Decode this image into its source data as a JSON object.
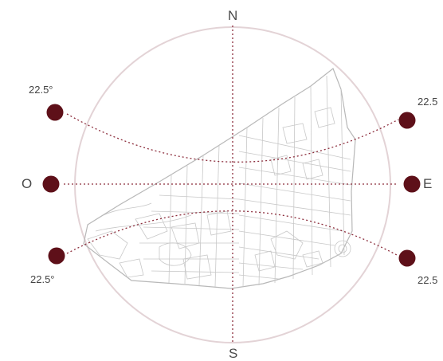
{
  "compass": {
    "north": "N",
    "south": "S",
    "east": "E",
    "west": "O"
  },
  "sun_angles": {
    "top_left": "22.5°",
    "top_right": "22.5",
    "bottom_left": "22.5°",
    "bottom_right": "22.5"
  },
  "colors": {
    "circle": "#e3d3d6",
    "sun_marker": "#5e1019",
    "sun_path": "#8c2d3c",
    "map_lines": "#c8c8c8",
    "text": "#4a4a4a"
  }
}
